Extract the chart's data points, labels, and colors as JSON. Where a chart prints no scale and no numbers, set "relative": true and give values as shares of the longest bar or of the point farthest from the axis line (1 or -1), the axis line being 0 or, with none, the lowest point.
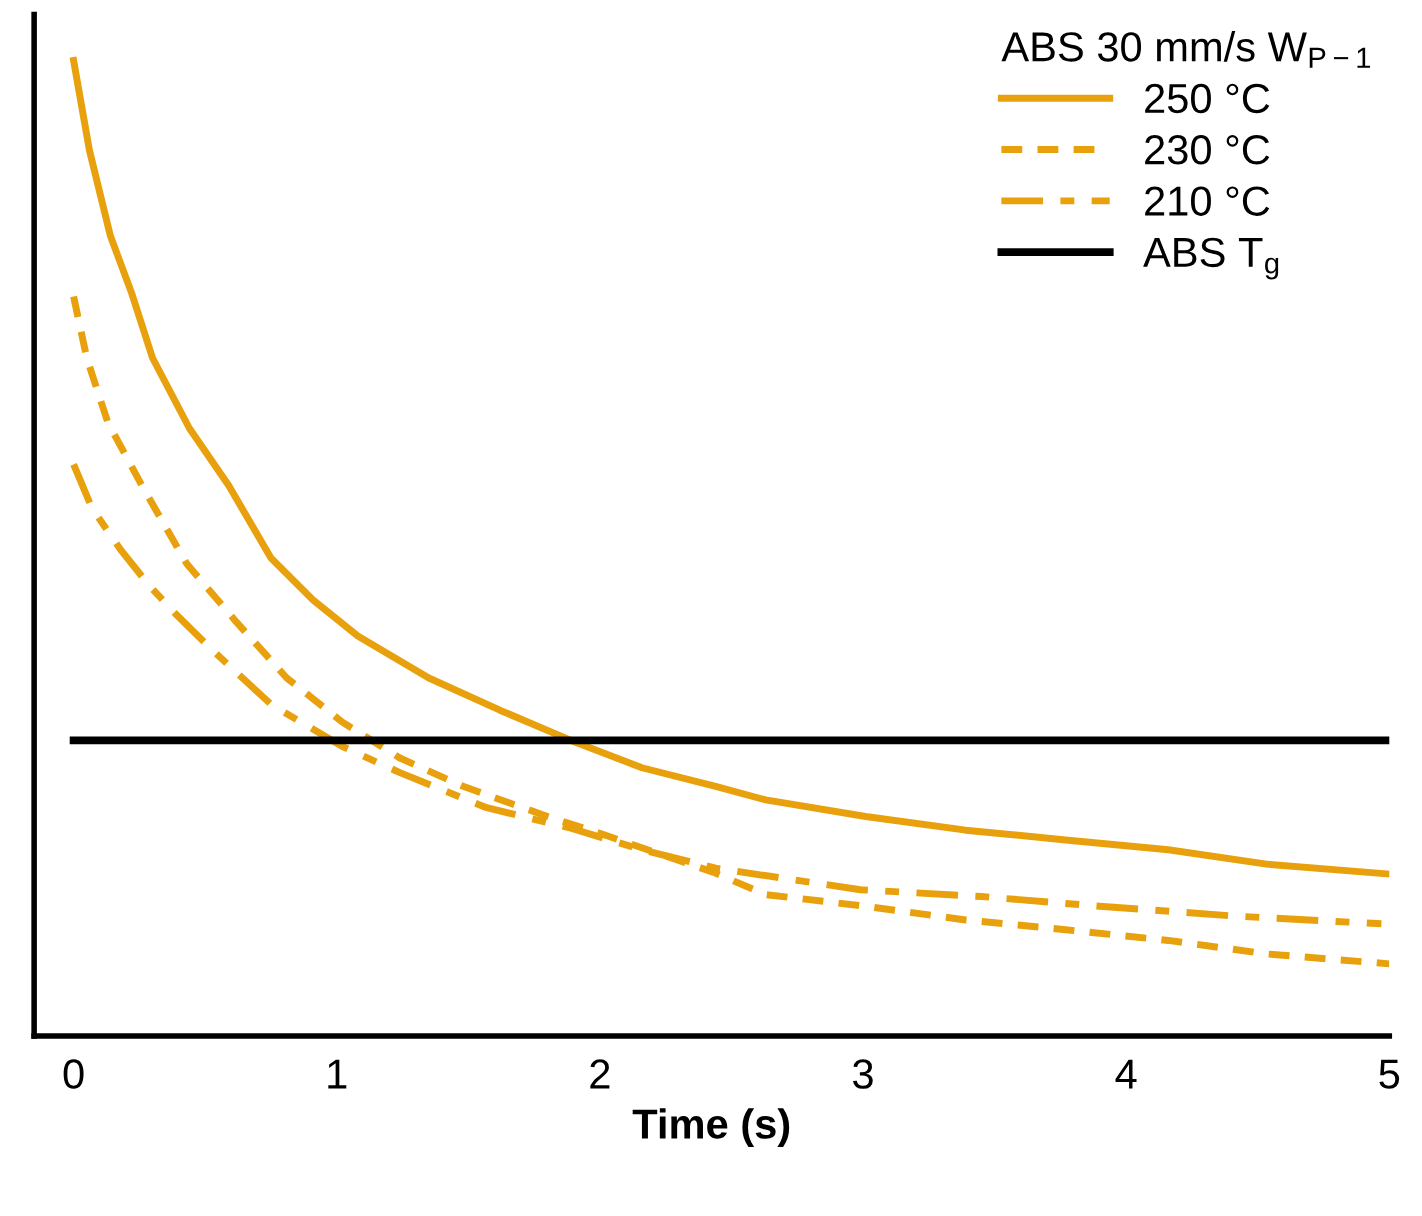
{
  "chart_data": {
    "type": "line",
    "relative": true,
    "xlabel": "Time (s)",
    "legend_title": "ABS 30 mm/s W$_{P−1}$",
    "legend": "top right",
    "grid": false,
    "marker": "none",
    "xlim": [
      -0.15,
      5
    ],
    "xticks": [
      0,
      1,
      2,
      3,
      4,
      5
    ],
    "series": [
      {
        "name": "250 °C",
        "color": "#e8a10c",
        "line_style": "solid",
        "x": [
          0,
          0.06,
          0.14,
          0.22,
          0.3,
          0.44,
          0.59,
          0.75,
          0.91,
          1.08,
          1.35,
          1.62,
          1.89,
          2.16,
          2.44,
          2.63,
          3.01,
          3.39,
          3.77,
          4.16,
          4.54,
          5.0
        ],
        "values": [
          1.0,
          0.908,
          0.82,
          0.762,
          0.695,
          0.623,
          0.564,
          0.49,
          0.447,
          0.41,
          0.367,
          0.334,
          0.303,
          0.275,
          0.256,
          0.242,
          0.225,
          0.211,
          0.201,
          0.191,
          0.176,
          0.166
        ]
      },
      {
        "name": "230 °C",
        "color": "#e8a10c",
        "line_style": "dashed",
        "x": [
          0,
          0.05,
          0.13,
          0.26,
          0.43,
          0.62,
          0.81,
          1.02,
          1.24,
          1.48,
          1.78,
          2.03,
          2.43,
          2.63,
          3.01,
          3.39,
          3.77,
          4.16,
          4.54,
          5.0
        ],
        "values": [
          0.758,
          0.695,
          0.629,
          0.564,
          0.484,
          0.424,
          0.367,
          0.322,
          0.285,
          0.256,
          0.227,
          0.205,
          0.168,
          0.145,
          0.133,
          0.119,
          0.109,
          0.098,
          0.084,
          0.074
        ]
      },
      {
        "name": "210 °C",
        "color": "#e8a10c",
        "line_style": "dashdot",
        "x": [
          0,
          0.07,
          0.18,
          0.29,
          0.39,
          0.53,
          0.75,
          1.02,
          1.24,
          1.57,
          1.89,
          2.16,
          2.44,
          2.99,
          3.45,
          3.9,
          4.41,
          4.97
        ],
        "values": [
          0.586,
          0.541,
          0.498,
          0.461,
          0.432,
          0.395,
          0.34,
          0.297,
          0.27,
          0.234,
          0.213,
          0.191,
          0.172,
          0.15,
          0.143,
          0.133,
          0.123,
          0.115
        ]
      },
      {
        "name": "ABS T$_{g}$",
        "color": "#000000",
        "line_style": "solid",
        "x": [
          0,
          5
        ],
        "values": [
          0.303,
          0.303
        ]
      }
    ]
  }
}
